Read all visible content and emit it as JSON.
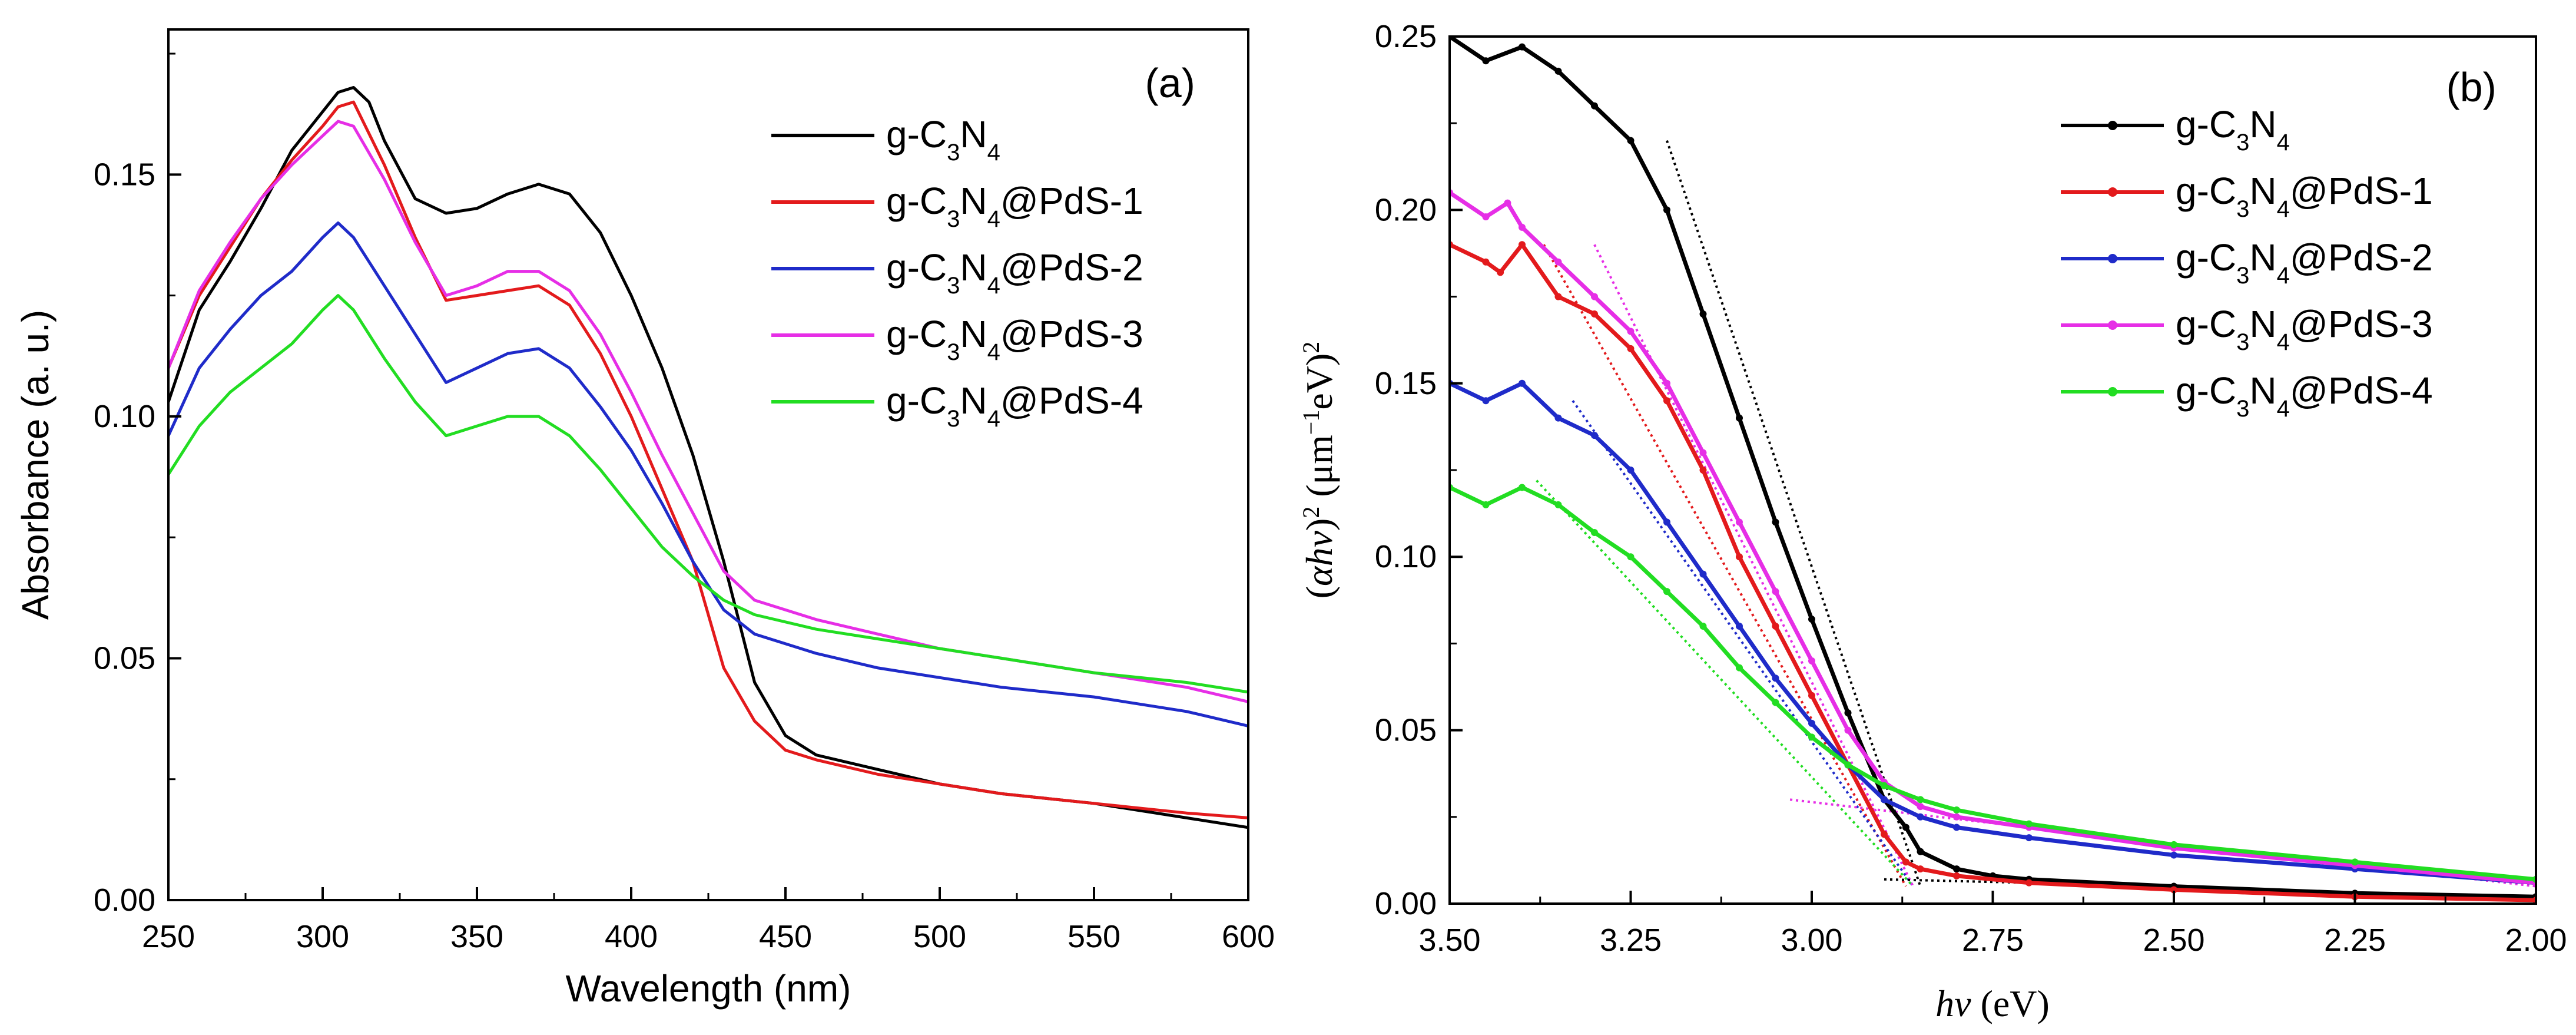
{
  "chart_data": [
    {
      "type": "line",
      "panel": "(a)",
      "xlabel": "Wavelength (nm)",
      "ylabel": "Absorbance (a. u.)",
      "xlim": [
        250,
        600
      ],
      "ylim": [
        0.0,
        0.18
      ],
      "xticks": [
        250,
        300,
        350,
        400,
        450,
        500,
        550,
        600
      ],
      "xtick_labels": [
        "250",
        "300",
        "350",
        "400",
        "450",
        "500",
        "550",
        "600"
      ],
      "yticks": [
        0.0,
        0.05,
        0.1,
        0.15
      ],
      "ytick_labels": [
        "0.00",
        "0.05",
        "0.10",
        "0.15"
      ],
      "legend_position": "top-right",
      "series": [
        {
          "name": "g-C3N4",
          "label_parts": [
            {
              "t": "g-C"
            },
            {
              "t": "3",
              "sub": true
            },
            {
              "t": "N"
            },
            {
              "t": "4",
              "sub": true
            }
          ],
          "color": "#000000",
          "x": [
            250,
            260,
            270,
            280,
            290,
            300,
            305,
            310,
            315,
            320,
            330,
            340,
            350,
            360,
            370,
            380,
            390,
            400,
            410,
            420,
            430,
            440,
            450,
            460,
            480,
            500,
            520,
            550,
            580,
            600
          ],
          "y": [
            0.103,
            0.122,
            0.132,
            0.143,
            0.155,
            0.163,
            0.167,
            0.168,
            0.165,
            0.157,
            0.145,
            0.142,
            0.143,
            0.146,
            0.148,
            0.146,
            0.138,
            0.125,
            0.11,
            0.092,
            0.07,
            0.045,
            0.034,
            0.03,
            0.027,
            0.024,
            0.022,
            0.02,
            0.017,
            0.015
          ]
        },
        {
          "name": "g-C3N4@PdS-1",
          "label_parts": [
            {
              "t": "g-C"
            },
            {
              "t": "3",
              "sub": true
            },
            {
              "t": "N"
            },
            {
              "t": "4",
              "sub": true
            },
            {
              "t": "@PdS-1"
            }
          ],
          "color": "#e31a1c",
          "x": [
            250,
            260,
            270,
            280,
            290,
            300,
            305,
            310,
            320,
            330,
            340,
            350,
            360,
            370,
            380,
            390,
            400,
            410,
            420,
            430,
            440,
            450,
            460,
            480,
            500,
            520,
            550,
            580,
            600
          ],
          "y": [
            0.11,
            0.125,
            0.135,
            0.145,
            0.153,
            0.16,
            0.164,
            0.165,
            0.152,
            0.137,
            0.124,
            0.125,
            0.126,
            0.127,
            0.123,
            0.113,
            0.1,
            0.085,
            0.07,
            0.048,
            0.037,
            0.031,
            0.029,
            0.026,
            0.024,
            0.022,
            0.02,
            0.018,
            0.017
          ]
        },
        {
          "name": "g-C3N4@PdS-2",
          "label_parts": [
            {
              "t": "g-C"
            },
            {
              "t": "3",
              "sub": true
            },
            {
              "t": "N"
            },
            {
              "t": "4",
              "sub": true
            },
            {
              "t": "@PdS-2"
            }
          ],
          "color": "#1f2bc9",
          "x": [
            250,
            260,
            270,
            280,
            290,
            300,
            305,
            310,
            320,
            330,
            340,
            350,
            360,
            370,
            380,
            390,
            400,
            410,
            420,
            430,
            440,
            460,
            480,
            500,
            520,
            550,
            580,
            600
          ],
          "y": [
            0.096,
            0.11,
            0.118,
            0.125,
            0.13,
            0.137,
            0.14,
            0.137,
            0.127,
            0.117,
            0.107,
            0.11,
            0.113,
            0.114,
            0.11,
            0.102,
            0.093,
            0.082,
            0.07,
            0.06,
            0.055,
            0.051,
            0.048,
            0.046,
            0.044,
            0.042,
            0.039,
            0.036
          ]
        },
        {
          "name": "g-C3N4@PdS-3",
          "label_parts": [
            {
              "t": "g-C"
            },
            {
              "t": "3",
              "sub": true
            },
            {
              "t": "N"
            },
            {
              "t": "4",
              "sub": true
            },
            {
              "t": "@PdS-3"
            }
          ],
          "color": "#e62ee6",
          "x": [
            250,
            260,
            270,
            280,
            290,
            300,
            305,
            310,
            320,
            330,
            340,
            350,
            360,
            370,
            380,
            390,
            400,
            410,
            420,
            430,
            440,
            460,
            480,
            500,
            520,
            550,
            580,
            600
          ],
          "y": [
            0.11,
            0.126,
            0.136,
            0.145,
            0.152,
            0.158,
            0.161,
            0.16,
            0.149,
            0.136,
            0.125,
            0.127,
            0.13,
            0.13,
            0.126,
            0.117,
            0.105,
            0.092,
            0.08,
            0.068,
            0.062,
            0.058,
            0.055,
            0.052,
            0.05,
            0.047,
            0.044,
            0.041
          ]
        },
        {
          "name": "g-C3N4@PdS-4",
          "label_parts": [
            {
              "t": "g-C"
            },
            {
              "t": "3",
              "sub": true
            },
            {
              "t": "N"
            },
            {
              "t": "4",
              "sub": true
            },
            {
              "t": "@PdS-4"
            }
          ],
          "color": "#22dd22",
          "x": [
            250,
            260,
            270,
            280,
            290,
            300,
            305,
            310,
            320,
            330,
            340,
            350,
            360,
            370,
            380,
            390,
            400,
            410,
            420,
            430,
            440,
            460,
            480,
            500,
            520,
            550,
            580,
            600
          ],
          "y": [
            0.088,
            0.098,
            0.105,
            0.11,
            0.115,
            0.122,
            0.125,
            0.122,
            0.112,
            0.103,
            0.096,
            0.098,
            0.1,
            0.1,
            0.096,
            0.089,
            0.081,
            0.073,
            0.067,
            0.062,
            0.059,
            0.056,
            0.054,
            0.052,
            0.05,
            0.047,
            0.045,
            0.043
          ]
        }
      ]
    },
    {
      "type": "line",
      "panel": "(b)",
      "xlabel_parts": [
        {
          "t": "hν",
          "italic": true
        },
        {
          "t": " (eV)"
        }
      ],
      "ylabel_parts": [
        {
          "t": "("
        },
        {
          "t": "αhν",
          "italic": true
        },
        {
          "t": ")"
        },
        {
          "t": "2",
          "sup": true
        },
        {
          "t": " (μm"
        },
        {
          "t": "−1",
          "sup": true
        },
        {
          "t": "eV)"
        },
        {
          "t": "2",
          "sup": true
        }
      ],
      "xlim": [
        3.5,
        2.0
      ],
      "ylim": [
        0.0,
        0.25
      ],
      "x_reversed": true,
      "xticks": [
        3.5,
        3.25,
        3.0,
        2.75,
        2.5,
        2.25,
        2.0
      ],
      "xtick_labels": [
        "3.50",
        "3.25",
        "3.00",
        "2.75",
        "2.50",
        "2.25",
        "2.00"
      ],
      "yticks": [
        0.0,
        0.05,
        0.1,
        0.15,
        0.2,
        0.25
      ],
      "ytick_labels": [
        "0.00",
        "0.05",
        "0.10",
        "0.15",
        "0.20",
        "0.25"
      ],
      "legend_position": "top-right",
      "series": [
        {
          "name": "g-C3N4",
          "label_parts": [
            {
              "t": "g-C"
            },
            {
              "t": "3",
              "sub": true
            },
            {
              "t": "N"
            },
            {
              "t": "4",
              "sub": true
            }
          ],
          "color": "#000000",
          "x": [
            3.5,
            3.45,
            3.4,
            3.35,
            3.3,
            3.25,
            3.2,
            3.15,
            3.1,
            3.05,
            3.0,
            2.95,
            2.9,
            2.87,
            2.85,
            2.8,
            2.75,
            2.7,
            2.5,
            2.25,
            2.0
          ],
          "y": [
            0.25,
            0.243,
            0.247,
            0.24,
            0.23,
            0.22,
            0.2,
            0.17,
            0.14,
            0.11,
            0.082,
            0.055,
            0.03,
            0.022,
            0.015,
            0.01,
            0.008,
            0.007,
            0.005,
            0.003,
            0.002
          ]
        },
        {
          "name": "g-C3N4@PdS-1",
          "label_parts": [
            {
              "t": "g-C"
            },
            {
              "t": "3",
              "sub": true
            },
            {
              "t": "N"
            },
            {
              "t": "4",
              "sub": true
            },
            {
              "t": "@PdS-1"
            }
          ],
          "color": "#e31a1c",
          "x": [
            3.5,
            3.45,
            3.43,
            3.4,
            3.35,
            3.3,
            3.25,
            3.2,
            3.15,
            3.1,
            3.05,
            3.0,
            2.95,
            2.9,
            2.87,
            2.85,
            2.8,
            2.7,
            2.5,
            2.25,
            2.0
          ],
          "y": [
            0.19,
            0.185,
            0.182,
            0.19,
            0.175,
            0.17,
            0.16,
            0.145,
            0.125,
            0.1,
            0.08,
            0.06,
            0.04,
            0.02,
            0.012,
            0.01,
            0.008,
            0.006,
            0.004,
            0.002,
            0.001
          ]
        },
        {
          "name": "g-C3N4@PdS-2",
          "label_parts": [
            {
              "t": "g-C"
            },
            {
              "t": "3",
              "sub": true
            },
            {
              "t": "N"
            },
            {
              "t": "4",
              "sub": true
            },
            {
              "t": "@PdS-2"
            }
          ],
          "color": "#1f2bc9",
          "x": [
            3.5,
            3.45,
            3.4,
            3.35,
            3.3,
            3.25,
            3.2,
            3.15,
            3.1,
            3.05,
            3.0,
            2.95,
            2.9,
            2.85,
            2.8,
            2.7,
            2.5,
            2.25,
            2.0
          ],
          "y": [
            0.15,
            0.145,
            0.15,
            0.14,
            0.135,
            0.125,
            0.11,
            0.095,
            0.08,
            0.065,
            0.052,
            0.04,
            0.03,
            0.025,
            0.022,
            0.019,
            0.014,
            0.01,
            0.006
          ]
        },
        {
          "name": "g-C3N4@PdS-3",
          "label_parts": [
            {
              "t": "g-C"
            },
            {
              "t": "3",
              "sub": true
            },
            {
              "t": "N"
            },
            {
              "t": "4",
              "sub": true
            },
            {
              "t": "@PdS-3"
            }
          ],
          "color": "#e62ee6",
          "x": [
            3.5,
            3.45,
            3.42,
            3.4,
            3.35,
            3.3,
            3.25,
            3.2,
            3.15,
            3.1,
            3.05,
            3.0,
            2.95,
            2.9,
            2.85,
            2.8,
            2.7,
            2.5,
            2.25,
            2.0
          ],
          "y": [
            0.205,
            0.198,
            0.202,
            0.195,
            0.185,
            0.175,
            0.165,
            0.15,
            0.13,
            0.11,
            0.09,
            0.07,
            0.05,
            0.035,
            0.028,
            0.025,
            0.022,
            0.016,
            0.011,
            0.006
          ]
        },
        {
          "name": "g-C3N4@PdS-4",
          "label_parts": [
            {
              "t": "g-C"
            },
            {
              "t": "3",
              "sub": true
            },
            {
              "t": "N"
            },
            {
              "t": "4",
              "sub": true
            },
            {
              "t": "@PdS-4"
            }
          ],
          "color": "#22dd22",
          "x": [
            3.5,
            3.45,
            3.4,
            3.35,
            3.3,
            3.25,
            3.2,
            3.15,
            3.1,
            3.05,
            3.0,
            2.95,
            2.9,
            2.85,
            2.8,
            2.7,
            2.5,
            2.25,
            2.0
          ],
          "y": [
            0.12,
            0.115,
            0.12,
            0.115,
            0.107,
            0.1,
            0.09,
            0.08,
            0.068,
            0.058,
            0.048,
            0.04,
            0.034,
            0.03,
            0.027,
            0.023,
            0.017,
            0.012,
            0.007
          ]
        }
      ],
      "fit_lines": [
        {
          "series": "g-C3N4",
          "color": "#000000",
          "x": [
            3.2,
            2.85
          ],
          "y": [
            0.22,
            0.005
          ]
        },
        {
          "series": "g-C3N4@PdS-1",
          "color": "#e31a1c",
          "x": [
            3.37,
            2.87
          ],
          "y": [
            0.19,
            0.005
          ]
        },
        {
          "series": "g-C3N4@PdS-2",
          "color": "#1f2bc9",
          "x": [
            3.33,
            2.86
          ],
          "y": [
            0.145,
            0.005
          ]
        },
        {
          "series": "g-C3N4@PdS-3",
          "color": "#e62ee6",
          "x": [
            3.3,
            2.86
          ],
          "y": [
            0.19,
            0.005
          ]
        },
        {
          "series": "g-C3N4@PdS-4",
          "color": "#22dd22",
          "x": [
            3.38,
            2.86
          ],
          "y": [
            0.122,
            0.005
          ]
        },
        {
          "series": "baseline",
          "color": "#000000",
          "x": [
            2.9,
            2.7
          ],
          "y": [
            0.007,
            0.006
          ]
        },
        {
          "series": "baseline-PdS-3",
          "color": "#e62ee6",
          "x": [
            3.03,
            2.0
          ],
          "y": [
            0.03,
            0.005
          ]
        }
      ]
    }
  ]
}
